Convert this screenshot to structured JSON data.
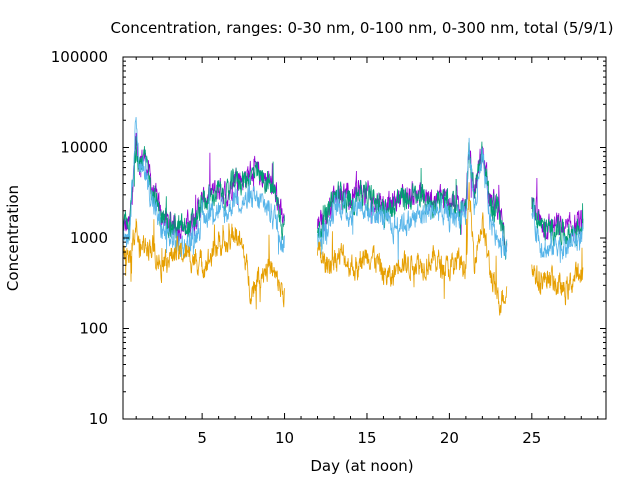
{
  "chart_data": {
    "type": "line",
    "title": "Concentration, ranges: 0-30 nm, 0-100 nm, 0-300 nm, total (5/9/1)",
    "xlabel": "Day (at noon)",
    "ylabel": "Concentration",
    "xlim": [
      0.2,
      29.5
    ],
    "ylim": [
      10,
      100000
    ],
    "yscale": "log",
    "grid": false,
    "legend": "none",
    "x_ticks": [
      5,
      10,
      15,
      20,
      25
    ],
    "x_tick_labels": [
      "5",
      "10",
      "15",
      "20",
      "25"
    ],
    "y_ticks": [
      10,
      100,
      1000,
      10000,
      100000
    ],
    "y_tick_labels": [
      "10",
      "100",
      "1000",
      "10000",
      "100000"
    ],
    "colors": {
      "range_0_30": "#e69f00",
      "range_0_100": "#56b4e9",
      "range_0_300": "#009e73",
      "total": "#9400d3",
      "axis": "#000000"
    },
    "segments": [
      [
        0.2,
        10.0
      ],
      [
        12.0,
        23.5
      ],
      [
        25.0,
        28.1
      ]
    ],
    "series": [
      {
        "color_key": "total",
        "x": [
          0.3,
          0.6,
          1.0,
          1.2,
          1.5,
          2.0,
          2.5,
          3.0,
          3.5,
          4.0,
          4.5,
          5.0,
          5.5,
          6.0,
          6.5,
          7.0,
          7.5,
          8.0,
          8.5,
          9.0,
          9.5,
          9.9,
          12.0,
          12.5,
          13.0,
          13.5,
          14.0,
          14.5,
          15.0,
          15.5,
          16.0,
          16.5,
          17.0,
          17.5,
          18.0,
          18.5,
          19.0,
          19.5,
          20.0,
          20.5,
          21.0,
          21.2,
          21.5,
          22.0,
          22.5,
          23.0,
          23.4,
          25.0,
          25.5,
          26.0,
          26.5,
          27.0,
          27.5,
          28.0
        ],
        "y": [
          1300,
          1400,
          12000,
          7000,
          8000,
          3500,
          1800,
          1500,
          1400,
          1300,
          1600,
          2500,
          3000,
          3500,
          3000,
          5000,
          4500,
          5500,
          5000,
          4500,
          3000,
          1500,
          1300,
          1700,
          3000,
          3300,
          2500,
          3500,
          3000,
          2700,
          2400,
          2300,
          3000,
          2900,
          3100,
          2800,
          2600,
          2900,
          2400,
          2600,
          2200,
          10000,
          3300,
          9000,
          2500,
          2300,
          900,
          2600,
          1500,
          1300,
          1400,
          1200,
          1300,
          1500
        ]
      },
      {
        "color_key": "range_0_300",
        "x": [
          0.3,
          0.6,
          1.0,
          1.2,
          1.5,
          2.0,
          2.5,
          3.0,
          3.5,
          4.0,
          4.5,
          5.0,
          5.5,
          6.0,
          6.5,
          7.0,
          7.5,
          8.0,
          8.5,
          9.0,
          9.5,
          9.9,
          12.0,
          12.5,
          13.0,
          13.5,
          14.0,
          14.5,
          15.0,
          15.5,
          16.0,
          16.5,
          17.0,
          17.5,
          18.0,
          18.5,
          19.0,
          19.5,
          20.0,
          20.5,
          21.0,
          21.2,
          21.5,
          22.0,
          22.5,
          23.0,
          23.4,
          25.0,
          25.5,
          26.0,
          26.5,
          27.0,
          27.5,
          28.0
        ],
        "y": [
          1250,
          1350,
          11000,
          6500,
          7500,
          3300,
          1700,
          1400,
          1300,
          1250,
          1500,
          2300,
          2800,
          3300,
          2800,
          4700,
          4200,
          5100,
          4700,
          4200,
          2800,
          1400,
          1200,
          1600,
          2800,
          3100,
          2300,
          3300,
          2800,
          2500,
          2200,
          2100,
          2800,
          2700,
          2900,
          2600,
          2400,
          2700,
          2200,
          2400,
          2000,
          9500,
          3100,
          8500,
          2300,
          2100,
          850,
          2400,
          1400,
          1200,
          1300,
          1100,
          1200,
          1400
        ]
      },
      {
        "color_key": "range_0_100",
        "x": [
          0.3,
          0.6,
          1.0,
          1.2,
          1.5,
          2.0,
          2.5,
          3.0,
          3.5,
          4.0,
          4.5,
          5.0,
          5.5,
          6.0,
          6.5,
          7.0,
          7.5,
          8.0,
          8.5,
          9.0,
          9.5,
          9.9,
          12.0,
          12.5,
          13.0,
          13.5,
          14.0,
          14.5,
          15.0,
          15.5,
          16.0,
          16.5,
          17.0,
          17.5,
          18.0,
          18.5,
          19.0,
          19.5,
          20.0,
          20.5,
          21.0,
          21.2,
          21.5,
          22.0,
          22.5,
          23.0,
          23.4,
          25.0,
          25.5,
          26.0,
          26.5,
          27.0,
          27.5,
          28.0
        ],
        "y": [
          1100,
          1200,
          25000,
          5000,
          6000,
          2500,
          1300,
          1000,
          900,
          800,
          1000,
          1600,
          2000,
          2000,
          1800,
          3000,
          2500,
          2600,
          2500,
          2200,
          1600,
          900,
          1000,
          1200,
          2000,
          2300,
          1800,
          2500,
          2000,
          1800,
          1700,
          1200,
          1500,
          1500,
          1700,
          1900,
          2000,
          2000,
          1600,
          1900,
          1500,
          12000,
          2000,
          7000,
          1500,
          1000,
          800,
          2000,
          900,
          700,
          900,
          800,
          900,
          1000
        ]
      },
      {
        "color_key": "range_0_30",
        "x": [
          0.3,
          0.6,
          1.0,
          1.2,
          1.5,
          2.0,
          2.5,
          3.0,
          3.5,
          4.0,
          4.5,
          5.0,
          5.5,
          6.0,
          6.5,
          7.0,
          7.5,
          8.0,
          8.5,
          9.0,
          9.5,
          9.9,
          12.0,
          12.5,
          13.0,
          13.5,
          14.0,
          14.5,
          15.0,
          15.5,
          16.0,
          16.5,
          17.0,
          17.5,
          18.0,
          18.5,
          19.0,
          19.5,
          20.0,
          20.5,
          21.0,
          21.2,
          21.5,
          22.0,
          22.5,
          23.0,
          23.4,
          25.0,
          25.5,
          26.0,
          26.5,
          27.0,
          27.5,
          28.0
        ],
        "y": [
          600,
          500,
          1500,
          700,
          900,
          800,
          500,
          600,
          700,
          650,
          600,
          500,
          600,
          900,
          800,
          1200,
          700,
          250,
          400,
          500,
          350,
          250,
          700,
          500,
          600,
          650,
          500,
          450,
          700,
          600,
          400,
          350,
          600,
          500,
          550,
          500,
          600,
          500,
          450,
          550,
          500,
          3000,
          600,
          1500,
          400,
          200,
          250,
          500,
          300,
          400,
          300,
          250,
          350,
          400
        ]
      }
    ]
  }
}
